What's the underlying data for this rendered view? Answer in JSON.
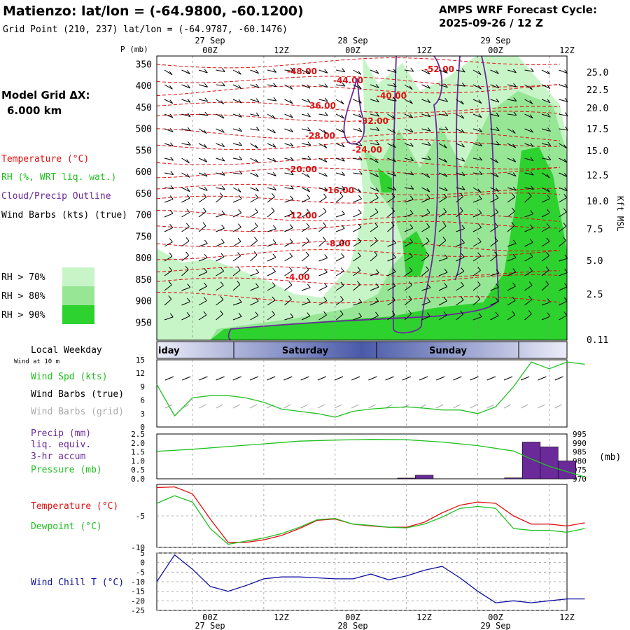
{
  "header": {
    "title": "Matienzo:  lat/lon = (-64.9800, -60.1200)",
    "subtitle": "Grid Point (210, 237) lat/lon = (-64.9787, -60.1476)",
    "cycle_line1": "AMPS WRF Forecast Cycle:",
    "cycle_line2": "2025-09-26 / 12  Z",
    "pressure_unit": "P (mb)",
    "model_grid_label": "Model Grid ΔX:",
    "model_grid_value": "6.000 km",
    "kft_label": "Kft MSL"
  },
  "time_axis": {
    "top_dates": [
      "27 Sep",
      "28 Sep",
      "29 Sep"
    ],
    "hour_labels": [
      "00Z",
      "12Z",
      "00Z",
      "12Z",
      "00Z",
      "12Z"
    ],
    "bottom_dates": [
      "27 Sep",
      "28 Sep",
      "29 Sep"
    ]
  },
  "legends": {
    "temperature": "Temperature (°C)",
    "rh": "RH (%, WRT liq. wat.)",
    "cloud": "Cloud/Precip Outline",
    "wind_barbs": "Wind Barbs (kts) (true)",
    "rh_levels": [
      "RH > 70%",
      "RH > 80%",
      "RH > 90%"
    ],
    "rh_colors": [
      "#c8f5c8",
      "#96e696",
      "#2ed22e"
    ],
    "local_weekday": "Local Weekday",
    "wind_at": "Wind at 10 m",
    "wind_spd": "Wind Spd (kts)",
    "wind_barbs_true": "Wind Barbs (true)",
    "wind_barbs_grid": "Wind Barbs (grid)",
    "precip_1": "Precip (mm)",
    "precip_2": "liq. equiv.",
    "precip_3": "3-hr accum",
    "pressure": "Pressure (mb)",
    "pressure_unit_right": "(mb)",
    "temp2": "Temperature (°C)",
    "dewpoint": "Dewpoint (°C)",
    "windchill": "Wind Chill T (°C)"
  },
  "weekdays": [
    "iday",
    "Saturday",
    "Sunday"
  ],
  "colors": {
    "temp": "#e01010",
    "green": "#20c020",
    "purple": "#6a2a9a",
    "blue": "#1010a0",
    "grey": "#aaaaaa",
    "rh70": "#c8f5c8",
    "rh80": "#96e696",
    "rh90": "#2ed22e"
  },
  "chart_data": [
    {
      "type": "contour",
      "title": "Time-height cross section",
      "y_label": "P (mb)",
      "pressure_ticks": [
        350,
        400,
        450,
        500,
        550,
        600,
        650,
        700,
        750,
        800,
        850,
        900,
        950
      ],
      "height_ticks_kft": [
        "25.0",
        "22.5",
        "20.0",
        "17.5",
        "15.0",
        "12.5",
        "10.0",
        "7.5",
        "5.0",
        "2.5",
        "0.11"
      ],
      "temperature_contour_labels": [
        "-48.00",
        "-44.00",
        "-40.00",
        "-36.00",
        "-32.00",
        "-28.00",
        "-24.00",
        "-20.00",
        "-16.00",
        "-12.00",
        "-8.00",
        "-4.00",
        "-52.00"
      ]
    },
    {
      "type": "line",
      "title": "Wind Spd (kts)",
      "x_hours": [
        0,
        3,
        6,
        9,
        12,
        15,
        18,
        21,
        24,
        27,
        30,
        33,
        36,
        39,
        42,
        45,
        48,
        51,
        54,
        57,
        60,
        63,
        66,
        69,
        72
      ],
      "y_ticks": [
        0,
        3,
        6,
        9,
        12,
        15
      ],
      "ylim": [
        0,
        15
      ],
      "values": [
        9.5,
        2.5,
        6.5,
        7,
        7,
        6.5,
        5.5,
        4,
        3.5,
        3,
        2.2,
        3.5,
        4,
        4.3,
        4.5,
        4.2,
        3.8,
        3.8,
        3,
        4.5,
        9,
        14.5,
        13,
        14.5,
        14
      ]
    },
    {
      "type": "bar+line",
      "title": "Precip (mm) / Pressure (mb)",
      "precip_ticks": [
        "0.0",
        "0.5",
        "1.0",
        "1.5",
        "2.0",
        "2.5"
      ],
      "pressure_ticks": [
        970,
        975,
        980,
        985,
        990,
        995
      ],
      "precip_ylim": [
        0,
        2.5
      ],
      "pressure_ylim": [
        970,
        995
      ],
      "precip_bars": [
        {
          "hour": 42,
          "value": 0.04
        },
        {
          "hour": 45,
          "value": 0.2
        },
        {
          "hour": 60,
          "value": 0.05
        },
        {
          "hour": 63,
          "value": 2.05
        },
        {
          "hour": 66,
          "value": 1.78
        },
        {
          "hour": 69,
          "value": 1.0
        }
      ],
      "pressure_hours": [
        0,
        6,
        12,
        18,
        24,
        30,
        36,
        42,
        48,
        54,
        60,
        63,
        66,
        69,
        72
      ],
      "pressure_values": [
        985.3,
        986.5,
        988,
        989.5,
        991,
        991.6,
        992,
        991.8,
        990.5,
        988.5,
        985.5,
        981,
        977,
        974,
        971
      ]
    },
    {
      "type": "line",
      "title": "Temperature / Dewpoint (°C)",
      "y_ticks": [
        -5,
        -10
      ],
      "ylim": [
        -10,
        0
      ],
      "x_hours": [
        0,
        3,
        6,
        9,
        12,
        15,
        18,
        21,
        24,
        27,
        30,
        33,
        36,
        39,
        42,
        45,
        48,
        51,
        54,
        57,
        60,
        63,
        66,
        69,
        72
      ],
      "temperature": [
        -0.5,
        -0.4,
        -1.5,
        -5.5,
        -9.2,
        -9.2,
        -8.8,
        -8.1,
        -7.0,
        -5.7,
        -5.5,
        -6.3,
        -6.6,
        -6.8,
        -6.8,
        -6.0,
        -4.5,
        -3.3,
        -2.8,
        -3.0,
        -5.0,
        -6.3,
        -6.3,
        -6.6,
        -6.1
      ],
      "dewpoint": [
        -3.0,
        -1.8,
        -2.8,
        -7.0,
        -9.5,
        -9.0,
        -8.5,
        -7.8,
        -6.8,
        -5.6,
        -5.4,
        -6.3,
        -6.5,
        -6.8,
        -6.9,
        -6.3,
        -5.2,
        -3.8,
        -3.5,
        -3.8,
        -7.0,
        -7.3,
        -7.3,
        -7.6,
        -7.0
      ]
    },
    {
      "type": "line",
      "title": "Wind Chill T (°C)",
      "y_ticks": [
        -25,
        -20,
        -15,
        -10,
        -5,
        0,
        5
      ],
      "ylim": [
        -25,
        5
      ],
      "x_hours": [
        0,
        3,
        6,
        9,
        12,
        15,
        18,
        21,
        24,
        27,
        30,
        33,
        36,
        39,
        42,
        45,
        48,
        51,
        54,
        57,
        60,
        63,
        66,
        69,
        72
      ],
      "values": [
        -10,
        4,
        -3.5,
        -12.5,
        -15,
        -12,
        -8.5,
        -7.5,
        -7.5,
        -8,
        -8.5,
        -8.5,
        -6,
        -9,
        -7,
        -4,
        -2,
        -8,
        -15,
        -21,
        -20,
        -21,
        -20,
        -19,
        -19
      ]
    }
  ]
}
